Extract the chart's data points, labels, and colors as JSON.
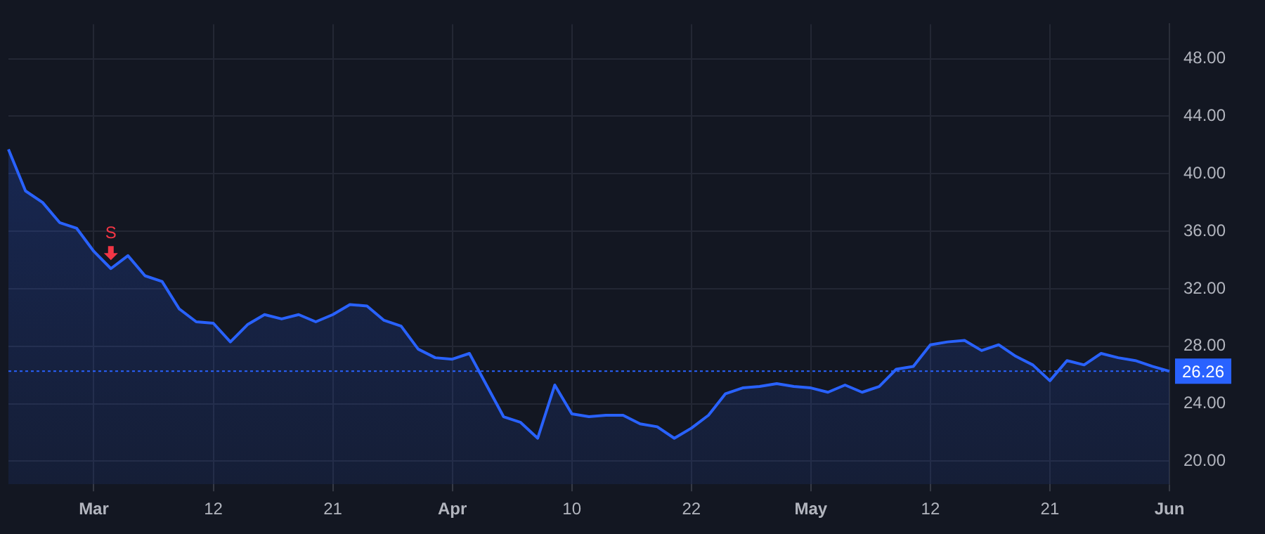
{
  "chart_data": {
    "type": "area",
    "categories": [
      null,
      null,
      null,
      null,
      null,
      "Mar",
      null,
      null,
      null,
      null,
      null,
      null,
      "12",
      null,
      null,
      null,
      null,
      null,
      null,
      "21",
      null,
      null,
      null,
      null,
      null,
      null,
      "Apr",
      null,
      null,
      null,
      null,
      null,
      null,
      "10",
      null,
      null,
      null,
      null,
      null,
      null,
      "22",
      null,
      null,
      null,
      null,
      null,
      null,
      "May",
      null,
      null,
      null,
      null,
      null,
      null,
      "12",
      null,
      null,
      null,
      null,
      null,
      null,
      "21",
      null,
      null,
      null,
      null,
      null,
      null,
      "Jun"
    ],
    "series": [
      {
        "color": "#2962ff",
        "values": [
          41.7,
          38.8,
          38.0,
          36.6,
          36.2,
          34.6,
          33.4,
          34.3,
          32.9,
          32.5,
          30.6,
          29.7,
          29.6,
          28.3,
          29.5,
          30.2,
          29.9,
          30.2,
          29.7,
          30.2,
          30.9,
          30.8,
          29.8,
          29.4,
          27.8,
          27.2,
          27.1,
          27.5,
          25.3,
          23.1,
          22.7,
          21.6,
          25.3,
          23.3,
          23.1,
          23.2,
          23.2,
          22.6,
          22.4,
          21.6,
          22.3,
          23.2,
          24.7,
          25.1,
          25.2,
          25.4,
          25.2,
          25.1,
          24.8,
          25.3,
          24.8,
          25.2,
          26.4,
          26.6,
          28.1,
          28.3,
          28.4,
          27.7,
          28.1,
          27.3,
          26.7,
          25.6,
          27.0,
          26.7,
          27.5,
          27.2,
          27.0,
          26.6,
          26.26
        ]
      }
    ],
    "ylim": [
      18.4,
      50.4
    ],
    "yticks": [
      {
        "value": 20,
        "label": "20.00"
      },
      {
        "value": 24,
        "label": "24.00"
      },
      {
        "value": 28,
        "label": "28.00"
      },
      {
        "value": 32,
        "label": "32.00"
      },
      {
        "value": 36,
        "label": "36.00"
      },
      {
        "value": 40,
        "label": "40.00"
      },
      {
        "value": 44,
        "label": "44.00"
      },
      {
        "value": 48,
        "label": "48.00"
      }
    ],
    "grid": true,
    "ref_lines": [
      {
        "axis": "y",
        "value": 26.26,
        "label": "26.26",
        "color": "#2962ff",
        "line_style": "dotted"
      }
    ],
    "annotations": [
      {
        "text": "S",
        "y": 33.4
      }
    ]
  }
}
